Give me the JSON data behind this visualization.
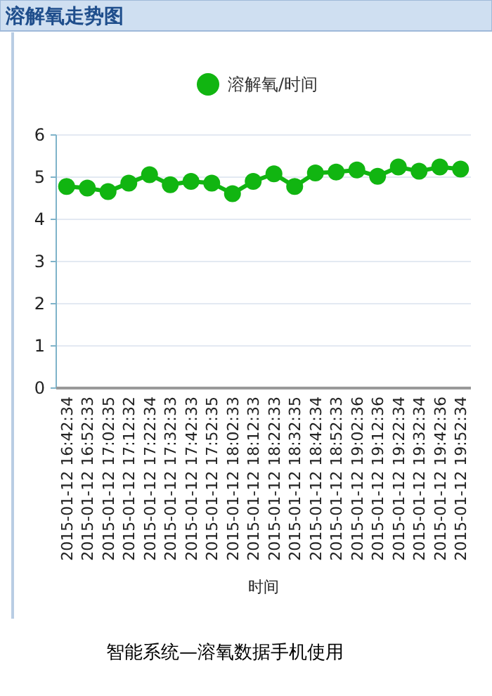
{
  "chart_data": {
    "type": "line",
    "title": "溶解氧走势图",
    "xlabel": "时间",
    "categories": [
      "2015-01-12 16:42:34",
      "2015-01-12 16:52:33",
      "2015-01-12 17:02:35",
      "2015-01-12 17:12:32",
      "2015-01-12 17:22:34",
      "2015-01-12 17:32:33",
      "2015-01-12 17:42:33",
      "2015-01-12 17:52:35",
      "2015-01-12 18:02:33",
      "2015-01-12 18:12:33",
      "2015-01-12 18:22:33",
      "2015-01-12 18:32:35",
      "2015-01-12 18:42:34",
      "2015-01-12 18:52:33",
      "2015-01-12 19:02:36",
      "2015-01-12 19:12:36",
      "2015-01-12 19:22:34",
      "2015-01-12 19:32:34",
      "2015-01-12 19:42:36",
      "2015-01-12 19:52:34"
    ],
    "series": [
      {
        "name": "溶解氧/时间",
        "color": "#11b511",
        "values": [
          4.78,
          4.74,
          4.66,
          4.86,
          5.06,
          4.82,
          4.9,
          4.86,
          4.61,
          4.9,
          5.08,
          4.78,
          5.1,
          5.12,
          5.17,
          5.02,
          5.24,
          5.14,
          5.24,
          5.19
        ]
      }
    ],
    "ylim": [
      0,
      6
    ],
    "yticks": [
      0,
      1,
      2,
      3,
      4,
      5,
      6
    ],
    "grid": "y",
    "legend": "top",
    "marker": "circle",
    "line_style": "solid",
    "annotations": [
      "智能系统—溶氧数据手机使用"
    ]
  }
}
